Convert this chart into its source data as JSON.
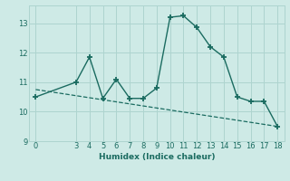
{
  "xlabel": "Humidex (Indice chaleur)",
  "ylabel": "",
  "bg_color": "#ceeae6",
  "line_color": "#1a6b60",
  "x_data": [
    0,
    3,
    4,
    5,
    6,
    7,
    8,
    9,
    10,
    11,
    12,
    13,
    14,
    15,
    16,
    17,
    18
  ],
  "y_data": [
    10.5,
    11.0,
    11.85,
    10.45,
    11.1,
    10.45,
    10.45,
    10.8,
    13.2,
    13.25,
    12.85,
    12.2,
    11.85,
    10.5,
    10.35,
    10.35,
    9.5
  ],
  "trend_x": [
    0,
    18
  ],
  "trend_y": [
    10.75,
    9.5
  ],
  "xlim": [
    -0.5,
    18.5
  ],
  "ylim": [
    9,
    13.6
  ],
  "yticks": [
    9,
    10,
    11,
    12,
    13
  ],
  "xticks": [
    0,
    3,
    4,
    5,
    6,
    7,
    8,
    9,
    10,
    11,
    12,
    13,
    14,
    15,
    16,
    17,
    18
  ],
  "grid_color": "#aed4cf",
  "marker": "+",
  "marker_size": 5,
  "markeredgewidth": 1.3,
  "linewidth": 1.0,
  "trend_linewidth": 0.9,
  "xlabel_fontsize": 6.5,
  "tick_fontsize": 6
}
